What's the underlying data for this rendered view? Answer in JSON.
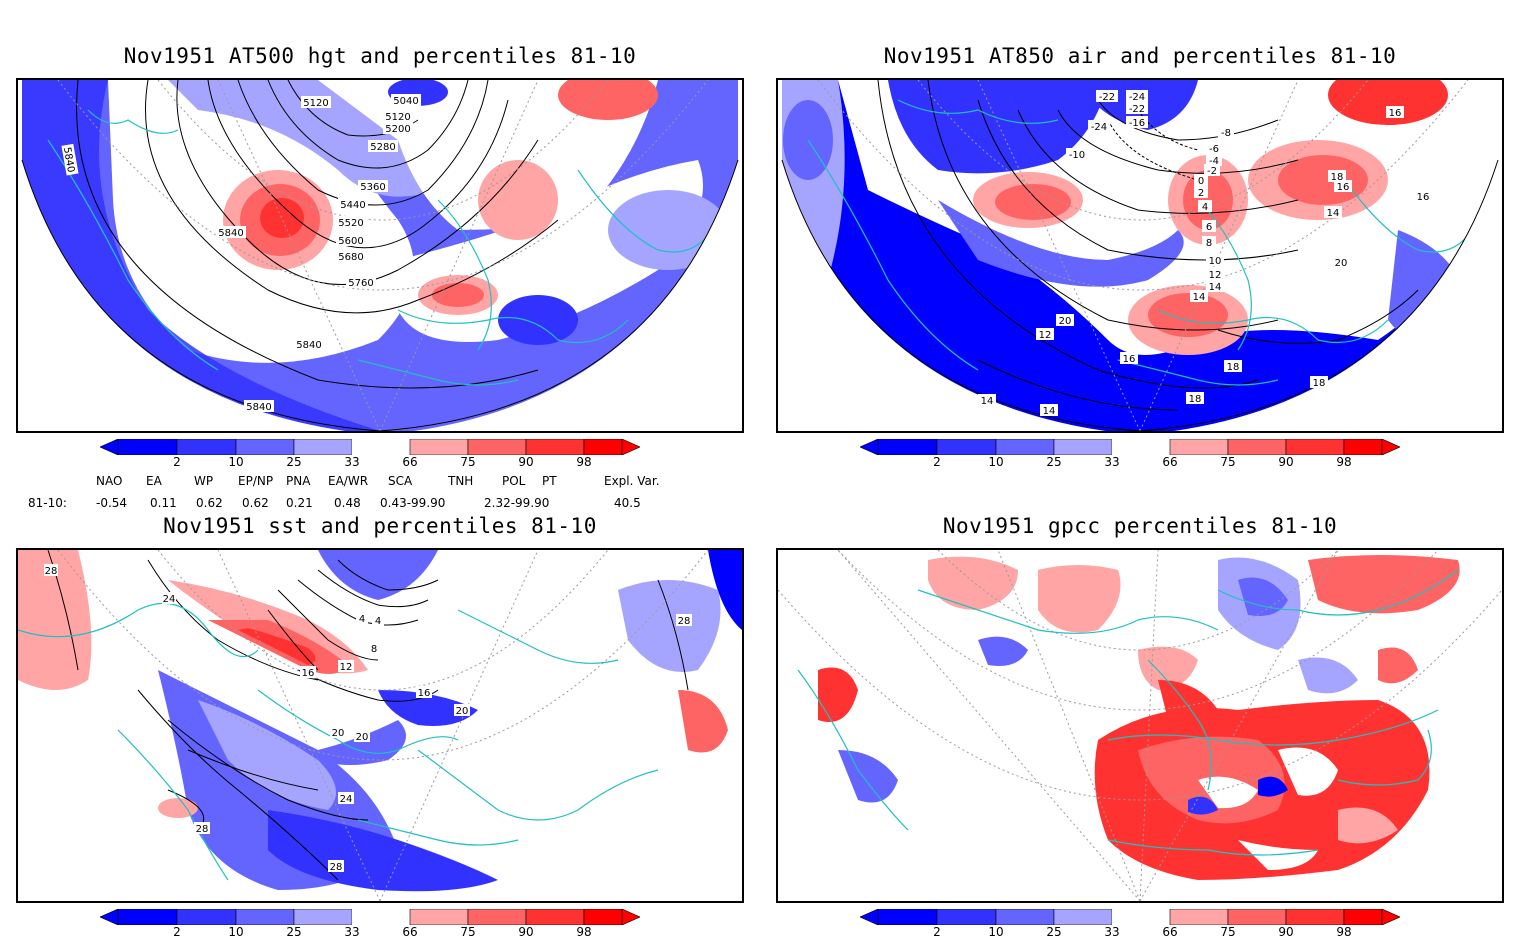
{
  "panels": {
    "hgt500": {
      "title": "Nov1951 AT500 hgt and percentiles 81-10",
      "contour_labels": [
        "5120",
        "5040",
        "5120",
        "5200",
        "5280",
        "5360",
        "5440",
        "5520",
        "5600",
        "5680",
        "5760",
        "5840",
        "5840",
        "5840",
        "5840"
      ]
    },
    "air850": {
      "title": "Nov1951 AT850 air and percentiles 81-10",
      "contour_labels": [
        "-22",
        "-24",
        "-22",
        "-24",
        "-16",
        "-10",
        "-8",
        "-6",
        "-4",
        "-2",
        "0",
        "2",
        "4",
        "6",
        "8",
        "10",
        "12",
        "14",
        "16",
        "18",
        "16",
        "16",
        "14",
        "16",
        "20",
        "12",
        "14",
        "14",
        "14",
        "18",
        "16",
        "18",
        "20",
        "18"
      ]
    },
    "sst": {
      "title": "Nov1951 sst and percentiles 81-10",
      "contour_labels": [
        "28",
        "24",
        "20",
        "4",
        "4",
        "8",
        "12",
        "16",
        "16",
        "20",
        "20",
        "24",
        "28",
        "28",
        "28"
      ]
    },
    "gpcc": {
      "title": "Nov1951 gpcc percentiles 81-10"
    }
  },
  "colorbar": {
    "ticks": [
      "2",
      "10",
      "25",
      "33",
      "66",
      "75",
      "90",
      "98"
    ],
    "colors": {
      "blue_extreme": "#0000ff",
      "blue_dark": "#3232ff",
      "blue_mid": "#6464ff",
      "blue_light": "#a5a5ff",
      "neutral": "#ffffff",
      "red_light": "#ffa5a5",
      "red_mid": "#ff6464",
      "red_dark": "#ff3232",
      "red_extreme": "#ff0000"
    }
  },
  "teleconnections": {
    "headers": [
      "NAO",
      "EA",
      "WP",
      "EP/NP",
      "PNA",
      "EA/WR",
      "SCA",
      "TNH",
      "POL",
      "PT",
      "Expl. Var."
    ],
    "row_label": "81-10:",
    "values": [
      "-0.54",
      "0.11",
      "0.62",
      "0.62",
      "0.21",
      "0.48",
      "0.43-99.90",
      "2.32-99.90",
      "40.5"
    ]
  },
  "style": {
    "coast_color": "#20c0c0",
    "grid_color": "#9a9a9a"
  }
}
